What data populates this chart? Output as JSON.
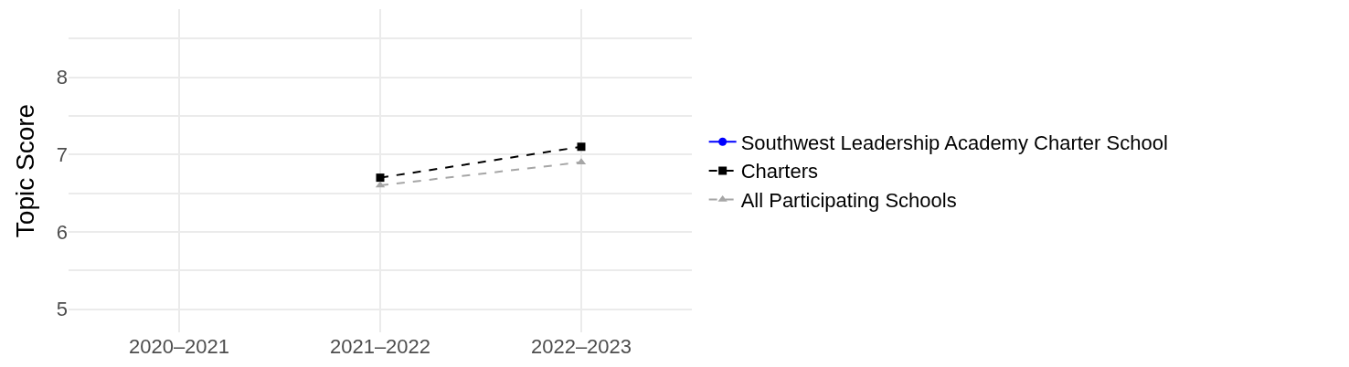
{
  "chart_data": {
    "type": "line",
    "ylabel": "Topic Score",
    "categories": [
      "2020–2021",
      "2021–2022",
      "2022–2023"
    ],
    "series": [
      {
        "name": "Southwest Leadership Academy Charter School",
        "color": "#0000ff",
        "marker": "circle",
        "line_style": "solid",
        "values": [
          null,
          null,
          null
        ]
      },
      {
        "name": "Charters",
        "color": "#000000",
        "marker": "square",
        "line_style": "dashed",
        "values": [
          null,
          6.7,
          7.1
        ]
      },
      {
        "name": "All Participating Schools",
        "color": "#a6a6a6",
        "marker": "triangle",
        "line_style": "dashed",
        "values": [
          null,
          6.6,
          6.9
        ]
      }
    ],
    "ylim": [
      4.7,
      8.88
    ],
    "yticks": [
      5,
      {
        "value": 5.5,
        "label": null
      },
      6,
      {
        "value": 6.5,
        "label": null
      },
      7,
      {
        "value": 7.5,
        "label": null
      },
      8,
      {
        "value": 8.5,
        "label": null
      }
    ],
    "grid": true,
    "legend": "right"
  }
}
